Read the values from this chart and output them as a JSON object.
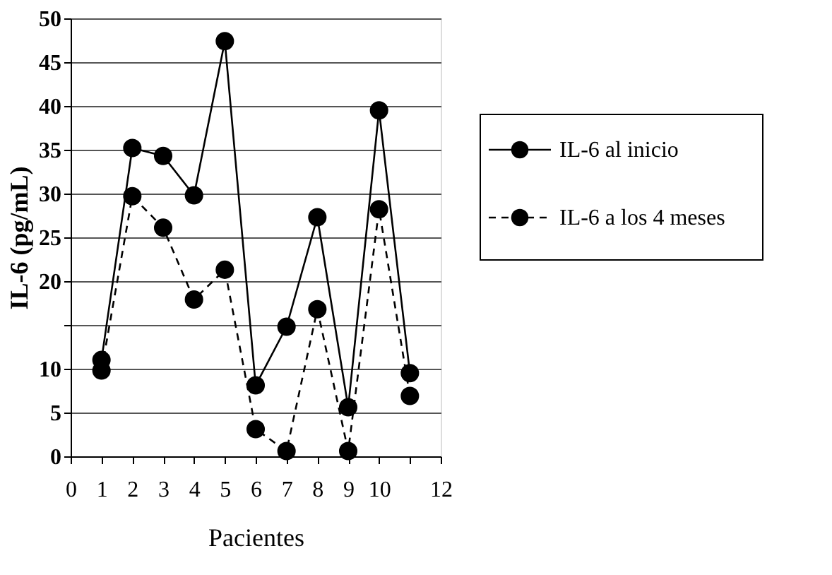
{
  "chart_data": {
    "type": "line",
    "xlabel": "Pacientes",
    "ylabel": "IL-6 (pg/mL)",
    "x": [
      1,
      2,
      3,
      4,
      5,
      6,
      7,
      8,
      9,
      10,
      11
    ],
    "series": [
      {
        "name": "IL-6 al inicio",
        "color": "#000000",
        "line_style": "solid",
        "values": [
          11.0,
          35.2,
          34.3,
          29.8,
          47.4,
          8.1,
          14.8,
          27.3,
          5.6,
          39.5,
          9.5
        ]
      },
      {
        "name": "IL-6 a los 4 meses",
        "color": "#000000",
        "line_style": "dashed",
        "values": [
          9.8,
          29.7,
          26.1,
          17.9,
          21.3,
          3.1,
          0.6,
          16.8,
          0.6,
          28.2,
          6.9
        ]
      }
    ],
    "xlim": [
      0,
      12
    ],
    "xticks": [
      0,
      1,
      2,
      3,
      4,
      5,
      6,
      7,
      8,
      9,
      10,
      {
        "value": 11,
        "label": null
      },
      12
    ],
    "ylim": [
      0,
      50
    ],
    "yticks": [
      0,
      5,
      10,
      {
        "value": 15,
        "label": null
      },
      20,
      25,
      30,
      35,
      40,
      45,
      50
    ],
    "grid": "y",
    "legend": "right",
    "marker": "circle"
  }
}
